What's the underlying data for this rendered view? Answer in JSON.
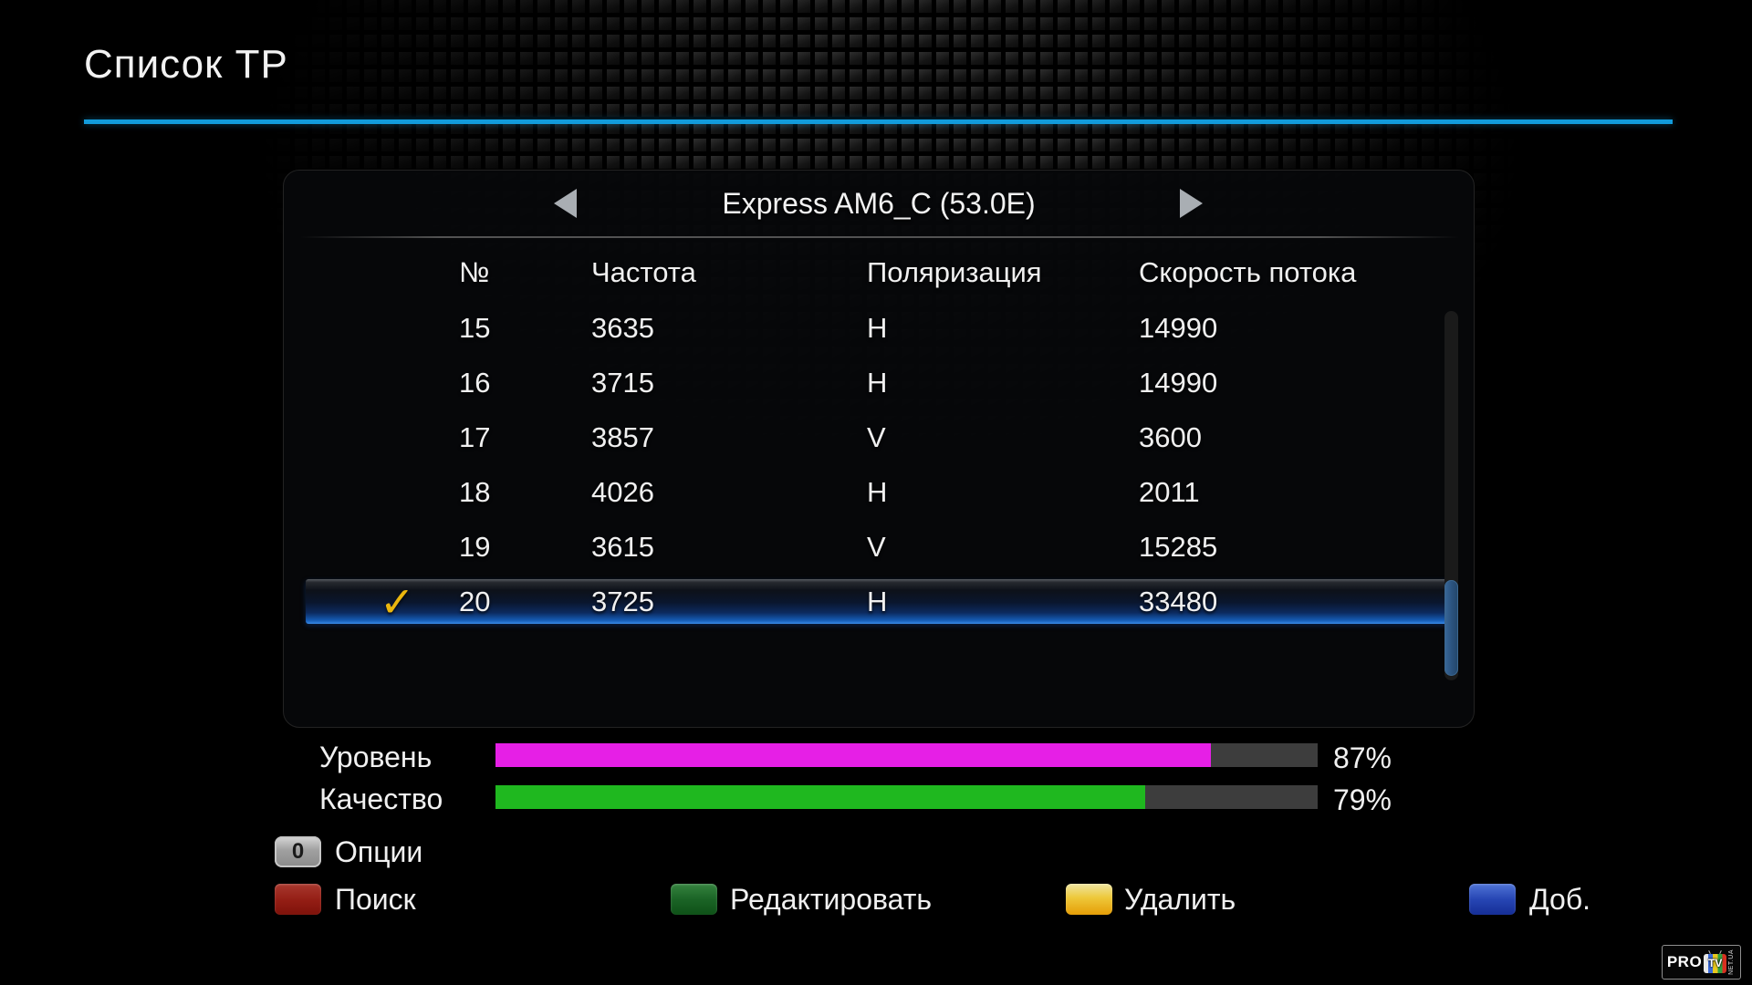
{
  "page": {
    "title": "Список ТР",
    "accent_color": "#129bdb"
  },
  "panel": {
    "satellite": {
      "name": "Express AM6_C (53.0E)",
      "prev_icon": "left-triangle",
      "next_icon": "right-triangle"
    },
    "table": {
      "columns": [
        "№",
        "Частота",
        "Поляризация",
        "Скорость потока"
      ],
      "check_icon": "✓",
      "check_color": "#eab60e",
      "selected_row_color": "#1a64c8",
      "rows": [
        {
          "num": "15",
          "freq": "3635",
          "pol": "H",
          "sr": "14990",
          "selected": false,
          "checked": false
        },
        {
          "num": "16",
          "freq": "3715",
          "pol": "H",
          "sr": "14990",
          "selected": false,
          "checked": false
        },
        {
          "num": "17",
          "freq": "3857",
          "pol": "V",
          "sr": "3600",
          "selected": false,
          "checked": false
        },
        {
          "num": "18",
          "freq": "4026",
          "pol": "H",
          "sr": "2011",
          "selected": false,
          "checked": false
        },
        {
          "num": "19",
          "freq": "3615",
          "pol": "V",
          "sr": "15285",
          "selected": false,
          "checked": false
        },
        {
          "num": "20",
          "freq": "3725",
          "pol": "H",
          "sr": "33480",
          "selected": true,
          "checked": true
        }
      ]
    }
  },
  "signal": {
    "level": {
      "label": "Уровень",
      "percent": 87,
      "value_text": "87%",
      "bar_color": "#e61fe6"
    },
    "quality": {
      "label": "Качество",
      "percent": 79,
      "value_text": "79%",
      "bar_color": "#1fb81f"
    }
  },
  "hints": {
    "options": {
      "key": "0",
      "label": "Опции"
    },
    "buttons": [
      {
        "color": "red",
        "hex": "#931d14",
        "label": "Поиск"
      },
      {
        "color": "green",
        "hex": "#1b6426",
        "label": "Редактировать"
      },
      {
        "color": "yellow",
        "hex": "#eec83a",
        "label": "Удалить"
      },
      {
        "color": "blue",
        "hex": "#2746b4",
        "label": "Доб."
      }
    ]
  },
  "logo": {
    "pro": "PRO",
    "tv": "TV",
    "side": "NET.UA"
  }
}
